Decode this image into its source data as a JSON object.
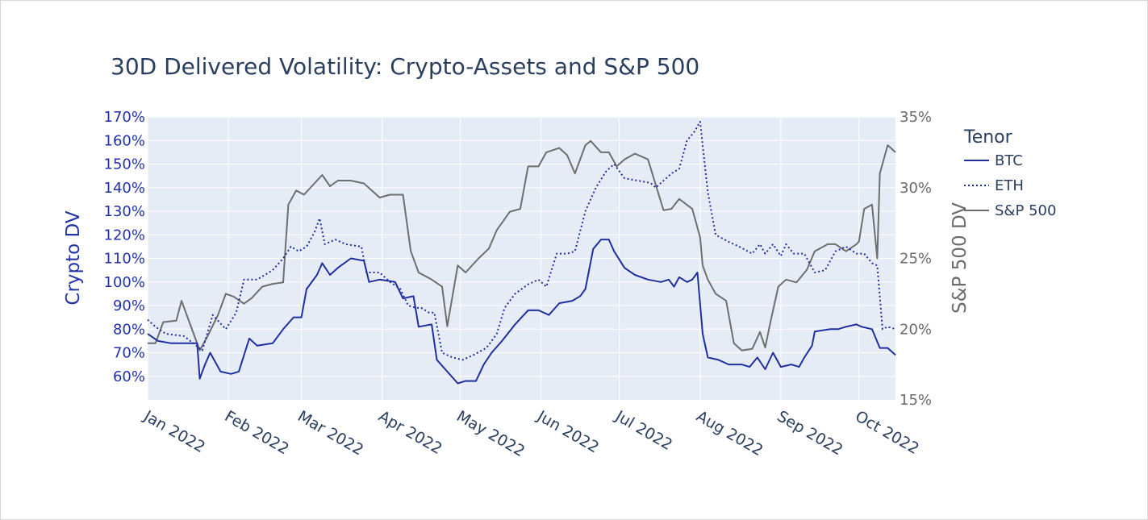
{
  "chart_data": {
    "type": "line",
    "title": "30D Delivered Volatility: Crypto-Assets and S&P 500",
    "ylabel": "Crypto DV",
    "y2label": "S&P 500 DV",
    "ylim": [
      50,
      170
    ],
    "y2lim": [
      15,
      35
    ],
    "y_ticks": [
      "60%",
      "70%",
      "80%",
      "90%",
      "100%",
      "110%",
      "120%",
      "130%",
      "140%",
      "150%",
      "160%",
      "170%"
    ],
    "y2_ticks": [
      "15%",
      "20%",
      "25%",
      "30%",
      "35%"
    ],
    "x_ticks": [
      "Jan 2022",
      "Feb 2022",
      "Mar 2022",
      "Apr 2022",
      "May 2022",
      "Jun 2022",
      "Jul 2022",
      "Aug 2022",
      "Sep 2022",
      "Oct 2022"
    ],
    "xlim": [
      "2022-01-01",
      "2022-10-15"
    ],
    "grid": true,
    "legend": {
      "title": "Tenor",
      "placement": "right"
    },
    "series": [
      {
        "name": "BTC",
        "axis": "left",
        "color": "#1f2fa0",
        "dash": "solid",
        "points": [
          [
            "2022-01-01",
            78
          ],
          [
            "2022-01-05",
            75
          ],
          [
            "2022-01-10",
            74
          ],
          [
            "2022-01-15",
            74
          ],
          [
            "2022-01-20",
            74
          ],
          [
            "2022-01-21",
            59
          ],
          [
            "2022-01-23",
            65
          ],
          [
            "2022-01-25",
            70
          ],
          [
            "2022-01-29",
            62
          ],
          [
            "2022-02-02",
            61
          ],
          [
            "2022-02-05",
            62
          ],
          [
            "2022-02-09",
            76
          ],
          [
            "2022-02-12",
            73
          ],
          [
            "2022-02-18",
            74
          ],
          [
            "2022-02-22",
            80
          ],
          [
            "2022-02-26",
            85
          ],
          [
            "2022-03-01",
            85
          ],
          [
            "2022-03-03",
            97
          ],
          [
            "2022-03-07",
            103
          ],
          [
            "2022-03-09",
            108
          ],
          [
            "2022-03-12",
            103
          ],
          [
            "2022-03-15",
            106
          ],
          [
            "2022-03-20",
            110
          ],
          [
            "2022-03-25",
            109
          ],
          [
            "2022-03-27",
            100
          ],
          [
            "2022-03-31",
            101
          ],
          [
            "2022-04-06",
            100
          ],
          [
            "2022-04-09",
            93
          ],
          [
            "2022-04-13",
            94
          ],
          [
            "2022-04-15",
            81
          ],
          [
            "2022-04-20",
            82
          ],
          [
            "2022-04-22",
            67
          ],
          [
            "2022-04-26",
            62
          ],
          [
            "2022-04-30",
            57
          ],
          [
            "2022-05-03",
            58
          ],
          [
            "2022-05-07",
            58
          ],
          [
            "2022-05-10",
            65
          ],
          [
            "2022-05-13",
            70
          ],
          [
            "2022-05-17",
            75
          ],
          [
            "2022-05-22",
            82
          ],
          [
            "2022-05-27",
            88
          ],
          [
            "2022-05-31",
            88
          ],
          [
            "2022-06-04",
            86
          ],
          [
            "2022-06-08",
            91
          ],
          [
            "2022-06-13",
            92
          ],
          [
            "2022-06-16",
            94
          ],
          [
            "2022-06-18",
            97
          ],
          [
            "2022-06-21",
            114
          ],
          [
            "2022-06-24",
            118
          ],
          [
            "2022-06-27",
            118
          ],
          [
            "2022-06-29",
            113
          ],
          [
            "2022-07-03",
            106
          ],
          [
            "2022-07-07",
            103
          ],
          [
            "2022-07-12",
            101
          ],
          [
            "2022-07-17",
            100
          ],
          [
            "2022-07-20",
            101
          ],
          [
            "2022-07-22",
            98
          ],
          [
            "2022-07-24",
            102
          ],
          [
            "2022-07-27",
            100
          ],
          [
            "2022-07-29",
            101
          ],
          [
            "2022-07-31",
            104
          ],
          [
            "2022-08-02",
            78
          ],
          [
            "2022-08-04",
            68
          ],
          [
            "2022-08-08",
            67
          ],
          [
            "2022-08-12",
            65
          ],
          [
            "2022-08-17",
            65
          ],
          [
            "2022-08-20",
            64
          ],
          [
            "2022-08-23",
            68
          ],
          [
            "2022-08-26",
            63
          ],
          [
            "2022-08-29",
            70
          ],
          [
            "2022-09-01",
            64
          ],
          [
            "2022-09-05",
            65
          ],
          [
            "2022-09-08",
            64
          ],
          [
            "2022-09-10",
            68
          ],
          [
            "2022-09-13",
            73
          ],
          [
            "2022-09-14",
            79
          ],
          [
            "2022-09-20",
            80
          ],
          [
            "2022-09-23",
            80
          ],
          [
            "2022-09-26",
            81
          ],
          [
            "2022-09-30",
            82
          ],
          [
            "2022-10-02",
            81
          ],
          [
            "2022-10-06",
            80
          ],
          [
            "2022-10-09",
            72
          ],
          [
            "2022-10-12",
            72
          ],
          [
            "2022-10-15",
            69
          ]
        ]
      },
      {
        "name": "ETH",
        "axis": "left",
        "color": "#1f2fa0",
        "dash": "dotted",
        "points": [
          [
            "2022-01-01",
            84
          ],
          [
            "2022-01-04",
            81
          ],
          [
            "2022-01-08",
            78
          ],
          [
            "2022-01-15",
            77
          ],
          [
            "2022-01-22",
            71
          ],
          [
            "2022-01-26",
            86
          ],
          [
            "2022-01-31",
            80
          ],
          [
            "2022-02-04",
            87
          ],
          [
            "2022-02-07",
            101
          ],
          [
            "2022-02-12",
            101
          ],
          [
            "2022-02-18",
            105
          ],
          [
            "2022-02-22",
            110
          ],
          [
            "2022-02-25",
            115
          ],
          [
            "2022-02-28",
            113
          ],
          [
            "2022-03-03",
            115
          ],
          [
            "2022-03-06",
            121
          ],
          [
            "2022-03-08",
            127
          ],
          [
            "2022-03-10",
            116
          ],
          [
            "2022-03-14",
            118
          ],
          [
            "2022-03-18",
            116
          ],
          [
            "2022-03-24",
            115
          ],
          [
            "2022-03-26",
            104
          ],
          [
            "2022-03-31",
            104
          ],
          [
            "2022-04-04",
            100
          ],
          [
            "2022-04-08",
            97
          ],
          [
            "2022-04-11",
            90
          ],
          [
            "2022-04-14",
            89
          ],
          [
            "2022-04-16",
            89
          ],
          [
            "2022-04-19",
            87
          ],
          [
            "2022-04-21",
            87
          ],
          [
            "2022-04-24",
            70
          ],
          [
            "2022-04-28",
            68
          ],
          [
            "2022-05-02",
            67
          ],
          [
            "2022-05-06",
            69
          ],
          [
            "2022-05-11",
            72
          ],
          [
            "2022-05-15",
            78
          ],
          [
            "2022-05-18",
            89
          ],
          [
            "2022-05-22",
            95
          ],
          [
            "2022-05-27",
            99
          ],
          [
            "2022-05-31",
            101
          ],
          [
            "2022-06-03",
            98
          ],
          [
            "2022-06-07",
            112
          ],
          [
            "2022-06-11",
            112
          ],
          [
            "2022-06-14",
            113
          ],
          [
            "2022-06-18",
            130
          ],
          [
            "2022-06-22",
            140
          ],
          [
            "2022-06-26",
            147
          ],
          [
            "2022-06-29",
            150
          ],
          [
            "2022-07-03",
            144
          ],
          [
            "2022-07-08",
            143
          ],
          [
            "2022-07-13",
            142
          ],
          [
            "2022-07-15",
            140
          ],
          [
            "2022-07-19",
            144
          ],
          [
            "2022-07-21",
            146
          ],
          [
            "2022-07-24",
            148
          ],
          [
            "2022-07-27",
            160
          ],
          [
            "2022-07-30",
            164
          ],
          [
            "2022-08-01",
            168
          ],
          [
            "2022-08-04",
            138
          ],
          [
            "2022-08-07",
            120
          ],
          [
            "2022-08-12",
            117
          ],
          [
            "2022-08-16",
            115
          ],
          [
            "2022-08-21",
            112
          ],
          [
            "2022-08-24",
            116
          ],
          [
            "2022-08-26",
            112
          ],
          [
            "2022-08-29",
            116
          ],
          [
            "2022-09-01",
            111
          ],
          [
            "2022-09-03",
            116
          ],
          [
            "2022-09-06",
            112
          ],
          [
            "2022-09-10",
            112
          ],
          [
            "2022-09-14",
            104
          ],
          [
            "2022-09-18",
            105
          ],
          [
            "2022-09-22",
            113
          ],
          [
            "2022-09-26",
            115
          ],
          [
            "2022-09-30",
            112
          ],
          [
            "2022-10-03",
            112
          ],
          [
            "2022-10-06",
            108
          ],
          [
            "2022-10-08",
            107
          ],
          [
            "2022-10-10",
            80
          ],
          [
            "2022-10-12",
            81
          ],
          [
            "2022-10-15",
            80
          ]
        ]
      },
      {
        "name": "S&P 500",
        "axis": "right",
        "color": "#6e6e6e",
        "dash": "solid",
        "points": [
          [
            "2022-01-01",
            19.0
          ],
          [
            "2022-01-04",
            19.0
          ],
          [
            "2022-01-07",
            20.5
          ],
          [
            "2022-01-12",
            20.6
          ],
          [
            "2022-01-14",
            22.0
          ],
          [
            "2022-01-17",
            20.5
          ],
          [
            "2022-01-21",
            18.5
          ],
          [
            "2022-01-24",
            19.5
          ],
          [
            "2022-01-28",
            21.0
          ],
          [
            "2022-01-31",
            22.5
          ],
          [
            "2022-02-03",
            22.3
          ],
          [
            "2022-02-07",
            21.8
          ],
          [
            "2022-02-10",
            22.2
          ],
          [
            "2022-02-14",
            23.0
          ],
          [
            "2022-02-18",
            23.2
          ],
          [
            "2022-02-22",
            23.3
          ],
          [
            "2022-02-24",
            28.8
          ],
          [
            "2022-02-27",
            29.8
          ],
          [
            "2022-03-02",
            29.5
          ],
          [
            "2022-03-06",
            30.3
          ],
          [
            "2022-03-09",
            30.9
          ],
          [
            "2022-03-12",
            30.1
          ],
          [
            "2022-03-15",
            30.5
          ],
          [
            "2022-03-20",
            30.5
          ],
          [
            "2022-03-25",
            30.3
          ],
          [
            "2022-03-31",
            29.3
          ],
          [
            "2022-04-04",
            29.5
          ],
          [
            "2022-04-09",
            29.5
          ],
          [
            "2022-04-12",
            25.5
          ],
          [
            "2022-04-15",
            24.0
          ],
          [
            "2022-04-20",
            23.5
          ],
          [
            "2022-04-24",
            23.0
          ],
          [
            "2022-04-26",
            20.2
          ],
          [
            "2022-04-30",
            24.5
          ],
          [
            "2022-05-03",
            24.0
          ],
          [
            "2022-05-08",
            25.0
          ],
          [
            "2022-05-12",
            25.7
          ],
          [
            "2022-05-15",
            27.0
          ],
          [
            "2022-05-20",
            28.3
          ],
          [
            "2022-05-24",
            28.5
          ],
          [
            "2022-05-27",
            31.5
          ],
          [
            "2022-05-31",
            31.5
          ],
          [
            "2022-06-03",
            32.5
          ],
          [
            "2022-06-08",
            32.8
          ],
          [
            "2022-06-11",
            32.3
          ],
          [
            "2022-06-14",
            31.0
          ],
          [
            "2022-06-18",
            33.0
          ],
          [
            "2022-06-20",
            33.3
          ],
          [
            "2022-06-24",
            32.5
          ],
          [
            "2022-06-27",
            32.5
          ],
          [
            "2022-06-30",
            31.5
          ],
          [
            "2022-07-03",
            32.0
          ],
          [
            "2022-07-07",
            32.4
          ],
          [
            "2022-07-12",
            32.0
          ],
          [
            "2022-07-15",
            30.2
          ],
          [
            "2022-07-18",
            28.4
          ],
          [
            "2022-07-21",
            28.5
          ],
          [
            "2022-07-24",
            29.2
          ],
          [
            "2022-07-29",
            28.5
          ],
          [
            "2022-08-01",
            26.5
          ],
          [
            "2022-08-02",
            24.5
          ],
          [
            "2022-08-04",
            23.5
          ],
          [
            "2022-08-07",
            22.5
          ],
          [
            "2022-08-11",
            22.0
          ],
          [
            "2022-08-14",
            19.0
          ],
          [
            "2022-08-17",
            18.5
          ],
          [
            "2022-08-21",
            18.6
          ],
          [
            "2022-08-24",
            19.8
          ],
          [
            "2022-08-26",
            18.7
          ],
          [
            "2022-08-28",
            20.5
          ],
          [
            "2022-08-31",
            23.0
          ],
          [
            "2022-09-03",
            23.5
          ],
          [
            "2022-09-07",
            23.3
          ],
          [
            "2022-09-11",
            24.2
          ],
          [
            "2022-09-14",
            25.5
          ],
          [
            "2022-09-19",
            26.0
          ],
          [
            "2022-09-22",
            26.0
          ],
          [
            "2022-09-26",
            25.5
          ],
          [
            "2022-09-30",
            26.0
          ],
          [
            "2022-10-01",
            26.2
          ],
          [
            "2022-10-03",
            28.5
          ],
          [
            "2022-10-06",
            28.8
          ],
          [
            "2022-10-08",
            25.0
          ],
          [
            "2022-10-09",
            31.0
          ],
          [
            "2022-10-12",
            33.0
          ],
          [
            "2022-10-15",
            32.5
          ]
        ]
      }
    ]
  }
}
